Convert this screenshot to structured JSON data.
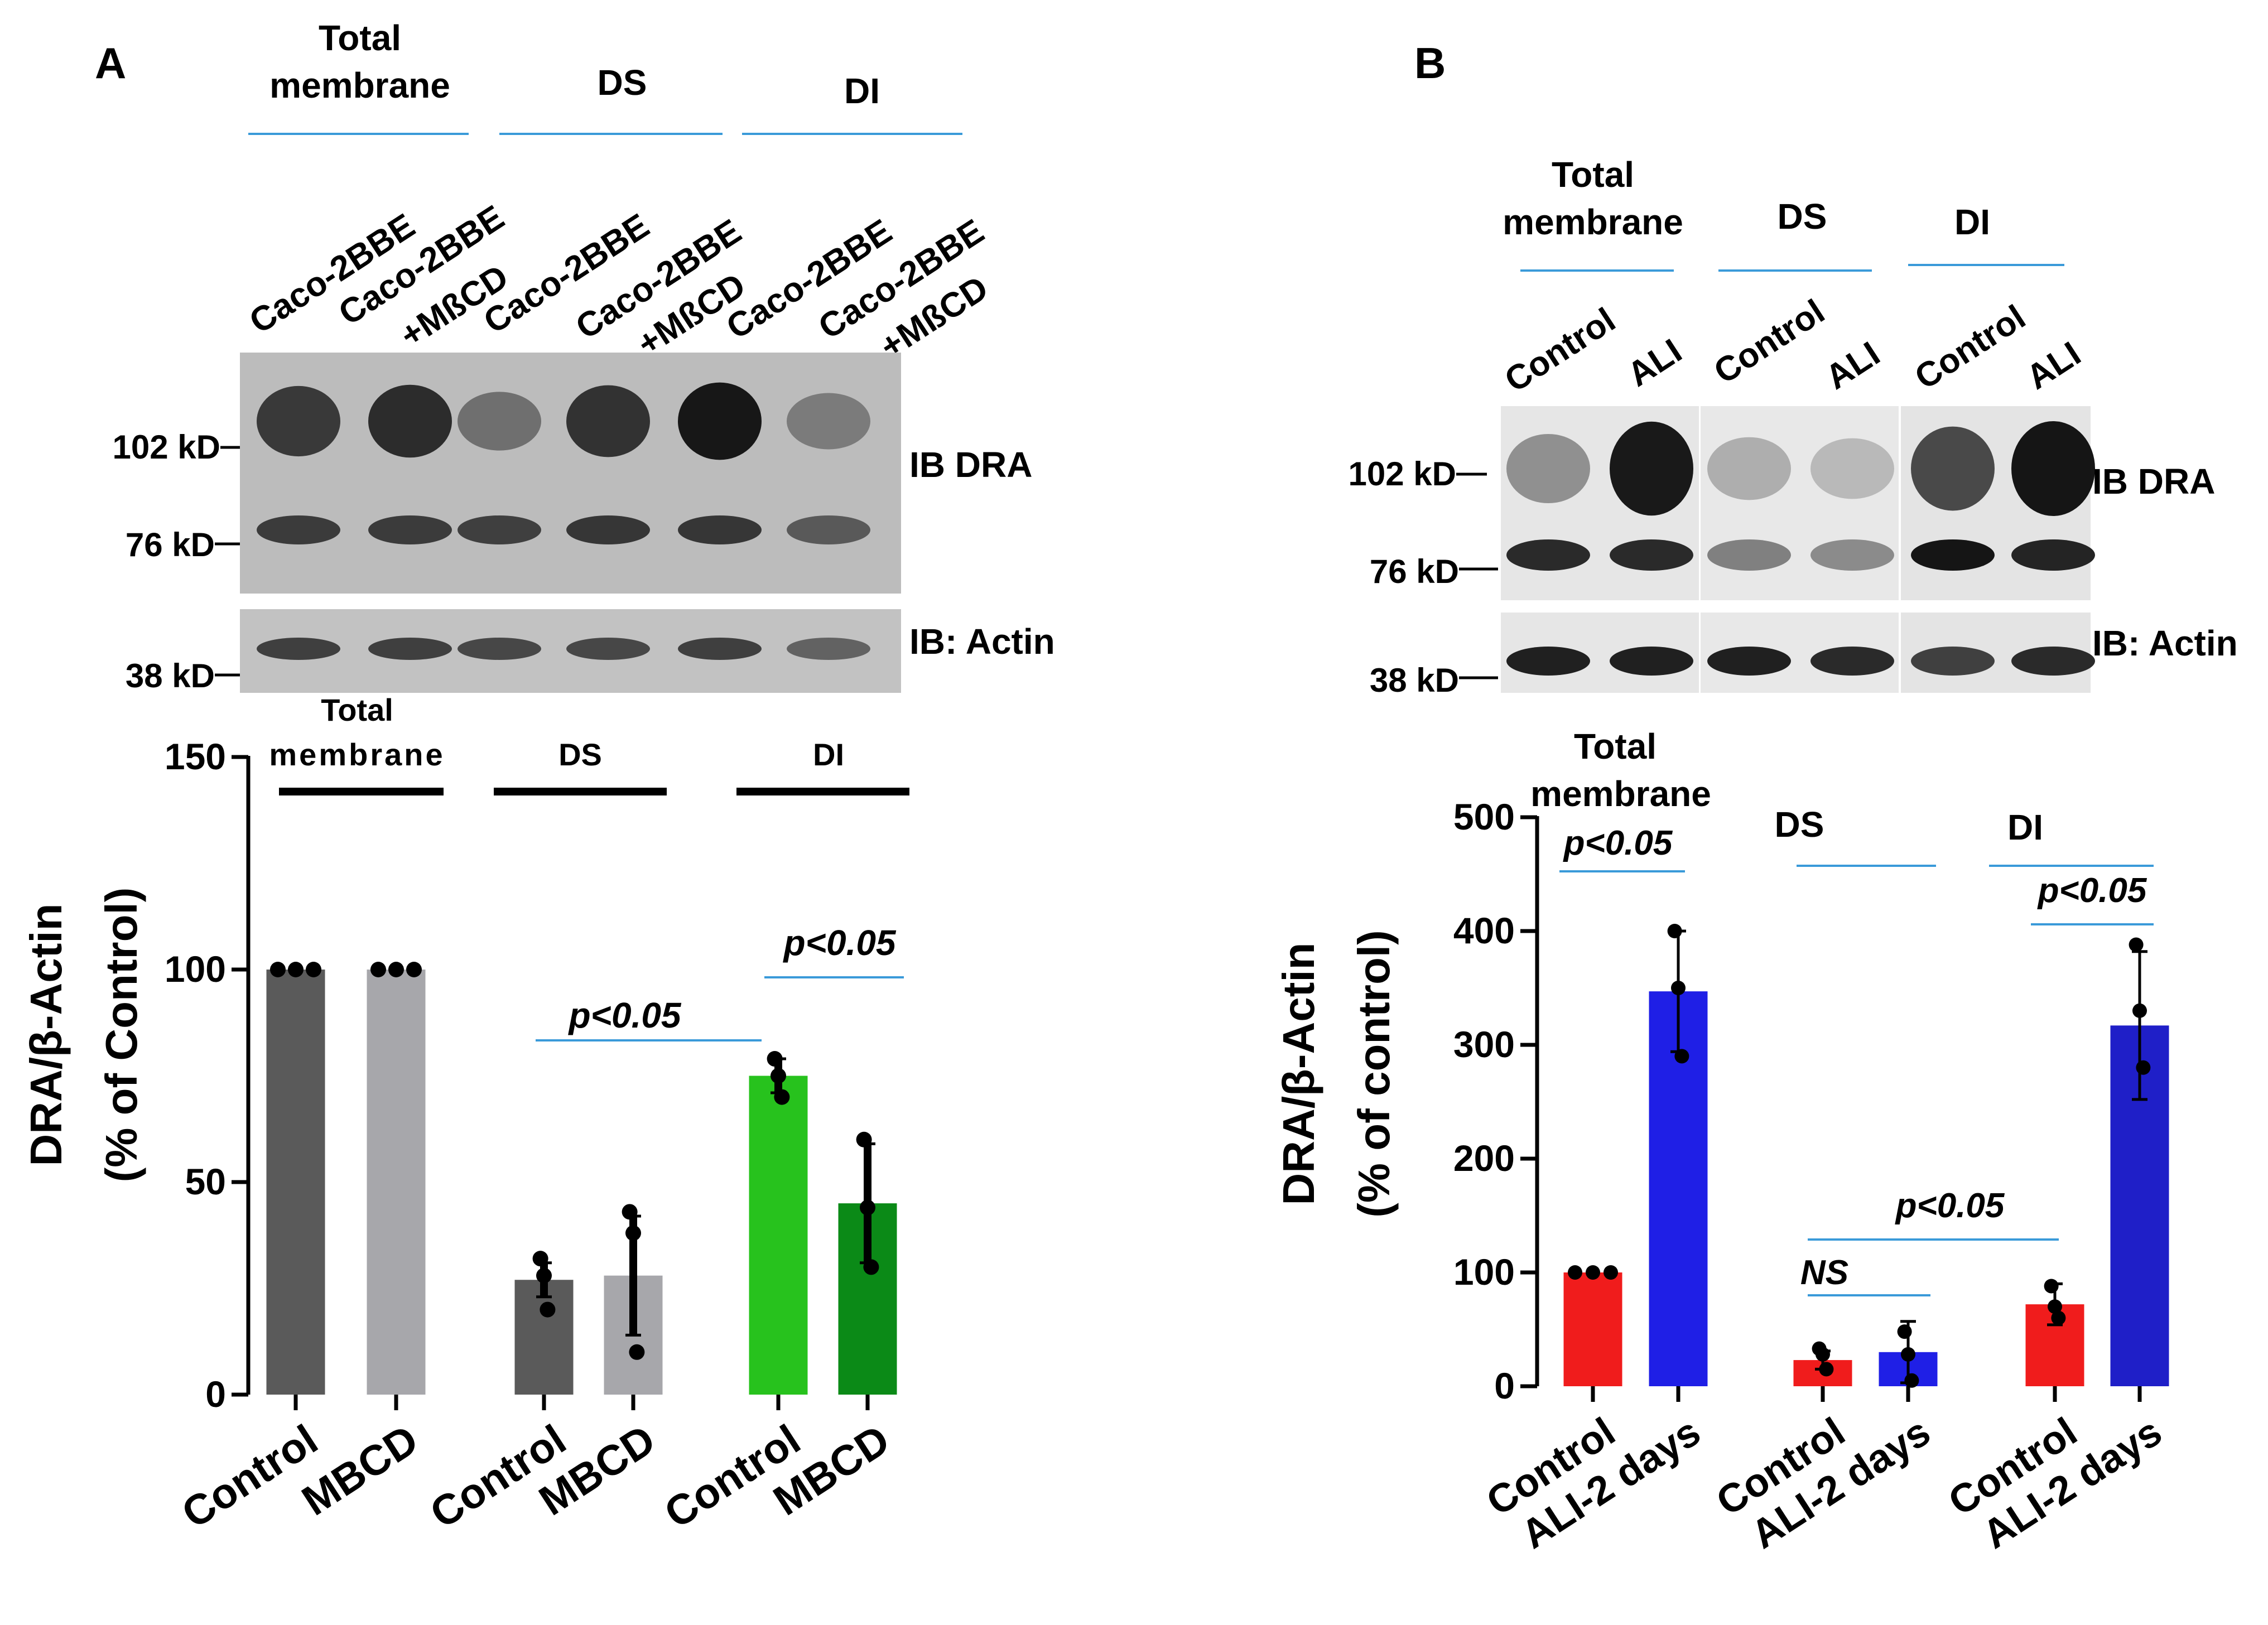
{
  "panelA": {
    "letter": "A",
    "blot": {
      "group_labels": [
        "Total",
        "membrane",
        "DS",
        "DI"
      ],
      "lane_labels": [
        "Caco-2BBE",
        "Caco-2BBE",
        "+MßCD",
        "Caco-2BBE",
        "Caco-2BBE",
        "+MßCD",
        "Caco-2BBE",
        "Caco-2BBE",
        "+MßCD"
      ],
      "mw_markers": [
        "102 kD",
        "76 kD",
        "38 kD"
      ],
      "ib_labels": [
        "IB DRA",
        "IB: Actin"
      ],
      "dra_upper_intensity": [
        0.78,
        0.85,
        0.45,
        0.82,
        0.98,
        0.38
      ],
      "dra_lower_intensity": [
        0.72,
        0.72,
        0.7,
        0.75,
        0.75,
        0.55
      ],
      "actin_intensity": [
        0.7,
        0.7,
        0.65,
        0.65,
        0.7,
        0.5
      ]
    },
    "chart_data": {
      "type": "bar",
      "ylabel_line1": "DRA/β-Actin",
      "ylabel_line2": "(% of Control)",
      "ylim": [
        0,
        150
      ],
      "yticks": [
        "0",
        "50",
        "100",
        "150"
      ],
      "group_labels": [
        "Total",
        "membrane",
        "DS",
        "DI"
      ],
      "categories": [
        "Control",
        "MBCD",
        "Control",
        "MBCD",
        "Control",
        "MBCD"
      ],
      "values": [
        100,
        100,
        27,
        28,
        75,
        45
      ],
      "error": [
        0,
        0,
        4,
        14,
        4,
        14
      ],
      "points": [
        [
          100,
          100,
          100
        ],
        [
          100,
          100,
          100
        ],
        [
          32,
          28,
          20
        ],
        [
          43,
          38,
          10
        ],
        [
          79,
          75,
          70
        ],
        [
          60,
          44,
          30
        ]
      ],
      "colors": [
        "#5a5a5a",
        "#a7a7ab",
        "#5a5a5a",
        "#a7a7ab",
        "#27c21d",
        "#0b8a17"
      ],
      "annotations": [
        "p<0.05",
        "p<0.05"
      ]
    }
  },
  "panelB": {
    "letter": "B",
    "blot": {
      "group_labels": [
        "Total",
        "membrane",
        "DS",
        "DI"
      ],
      "lane_labels": [
        "Control",
        "ALI",
        "Control",
        "ALI",
        "Control",
        "ALI"
      ],
      "mw_markers": [
        "102 kD",
        "76 kD",
        "38 kD"
      ],
      "ib_labels": [
        "IB DRA",
        "IB: Actin"
      ],
      "dra_upper_intensity": [
        0.4,
        0.98,
        0.25,
        0.2,
        0.75,
        1.0
      ],
      "dra_lower_intensity": [
        0.85,
        0.85,
        0.45,
        0.4,
        0.95,
        0.88
      ],
      "actin_intensity": [
        0.9,
        0.9,
        0.9,
        0.85,
        0.75,
        0.85
      ]
    },
    "chart_data": {
      "type": "bar",
      "ylabel_line1": "DRA/β-Actin",
      "ylabel_line2": "(% of control)",
      "ylim": [
        0,
        500
      ],
      "yticks": [
        "0",
        "100",
        "200",
        "300",
        "400",
        "500"
      ],
      "group_labels": [
        "Total",
        "membrane",
        "DS",
        "DI"
      ],
      "categories": [
        "Control",
        "ALI-2 days",
        "Control",
        "ALI-2 days",
        "Control",
        "ALI-2 days"
      ],
      "values": [
        100,
        347,
        23,
        30,
        72,
        317
      ],
      "error": [
        0,
        53,
        8,
        27,
        18,
        65
      ],
      "points": [
        [
          100,
          100,
          100
        ],
        [
          400,
          350,
          290
        ],
        [
          33,
          28,
          15
        ],
        [
          48,
          28,
          5
        ],
        [
          88,
          70,
          60
        ],
        [
          388,
          330,
          280
        ]
      ],
      "colors": [
        "#f01c1c",
        "#1f1fe6",
        "#f01c1c",
        "#1f1fe6",
        "#f01c1c",
        "#1f1fc8"
      ],
      "annotations": [
        "p<0.05",
        "NS",
        "p<0.05",
        "p<0.05"
      ]
    }
  }
}
